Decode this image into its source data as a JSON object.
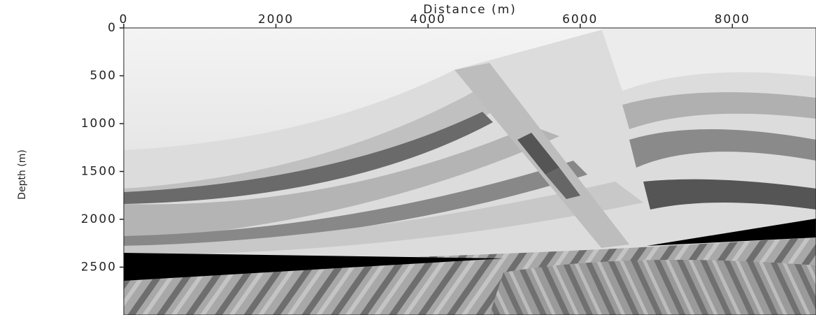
{
  "chart_data": {
    "type": "image",
    "title": "Distance (m)",
    "y_label": "Depth (m)",
    "xlim": [
      0,
      9100
    ],
    "xticks": [
      0,
      2000,
      4000,
      6000,
      8000
    ],
    "ylim": [
      0,
      3000
    ],
    "yticks": [
      0,
      500,
      1000,
      1500,
      2000,
      2500
    ],
    "y_inverted": true,
    "x_axis_position": "top",
    "colormap": "gray"
  }
}
